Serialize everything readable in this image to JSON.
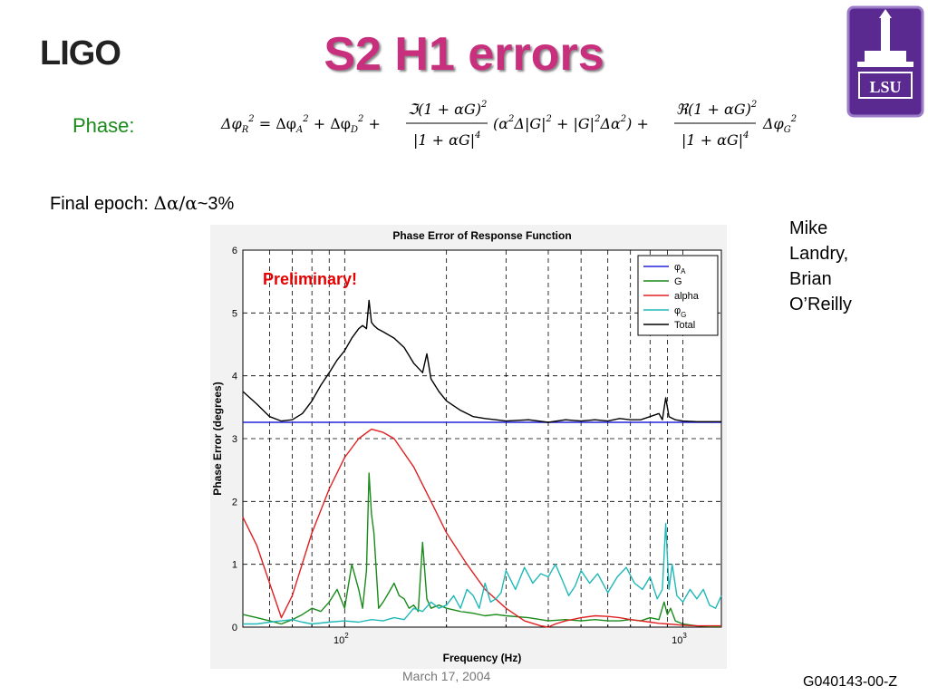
{
  "slide": {
    "logo_left": "LIGO",
    "title": "S2 H1 errors",
    "logo_right": "LSU",
    "phase_label": "Phase:",
    "epoch_prefix": "Final epoch: ",
    "epoch_symbol": "Δα/α",
    "epoch_value": "~3%",
    "authors": [
      "Mike",
      "Landry,",
      "Brian",
      "O’Reilly"
    ],
    "footer_date": "March 17, 2004",
    "footer_id": "G040143-00-Z"
  },
  "colors": {
    "title": "#c8307e",
    "phase_label": "#1a8a1a",
    "lsu_purple": "#5b2a91",
    "preliminary": "#e60000"
  },
  "chart_data": {
    "type": "line",
    "title": "Phase Error of Response Function",
    "xlabel": "Frequency (Hz)",
    "ylabel": "Phase Error (degrees)",
    "xscale": "log",
    "xlim": [
      50,
      1300
    ],
    "ylim": [
      0,
      6
    ],
    "x_ticks": [
      {
        "value": 100,
        "base": "10",
        "exp": "2"
      },
      {
        "value": 1000,
        "base": "10",
        "exp": "3"
      }
    ],
    "y_ticks": [
      0,
      1,
      2,
      3,
      4,
      5,
      6
    ],
    "grid": true,
    "legend_position": "top-right",
    "annotation": "Preliminary!",
    "series": [
      {
        "name": "φA",
        "legend_main": "φ",
        "legend_sub": "A",
        "color": "#2424d8",
        "x": [
          50,
          1300
        ],
        "y": [
          3.26,
          3.26
        ]
      },
      {
        "name": "G",
        "legend_main": "G",
        "legend_sub": "",
        "color": "#1a8a1a",
        "x": [
          50,
          55,
          60,
          65,
          70,
          75,
          80,
          85,
          90,
          95,
          100,
          105,
          110,
          113,
          116,
          118,
          120,
          122,
          124,
          126,
          130,
          135,
          140,
          145,
          150,
          155,
          160,
          165,
          170,
          175,
          180,
          190,
          200,
          220,
          240,
          260,
          280,
          300,
          350,
          400,
          450,
          500,
          550,
          600,
          650,
          700,
          750,
          800,
          850,
          880,
          900,
          920,
          950,
          1000,
          1100,
          1200,
          1300
        ],
        "y": [
          0.2,
          0.15,
          0.1,
          0.05,
          0.12,
          0.2,
          0.3,
          0.25,
          0.4,
          0.6,
          0.3,
          1.0,
          0.6,
          0.3,
          0.9,
          2.45,
          1.8,
          1.5,
          0.9,
          0.3,
          0.4,
          0.55,
          0.7,
          0.5,
          0.45,
          0.3,
          0.35,
          0.25,
          1.35,
          0.45,
          0.3,
          0.35,
          0.3,
          0.25,
          0.22,
          0.18,
          0.2,
          0.18,
          0.15,
          0.1,
          0.12,
          0.1,
          0.12,
          0.1,
          0.1,
          0.12,
          0.1,
          0.15,
          0.12,
          0.4,
          0.2,
          0.3,
          0.1,
          0.05,
          0.02,
          0.01,
          0.01
        ]
      },
      {
        "name": "alpha",
        "legend_main": "alpha",
        "legend_sub": "",
        "color": "#e02020",
        "x": [
          50,
          55,
          60,
          65,
          70,
          80,
          90,
          100,
          110,
          120,
          130,
          140,
          160,
          180,
          200,
          230,
          260,
          300,
          340,
          380,
          400,
          420,
          450,
          500,
          550,
          600,
          650,
          700,
          750,
          800,
          850,
          900,
          950,
          1000,
          1100,
          1200,
          1300
        ],
        "y": [
          1.75,
          1.3,
          0.7,
          0.15,
          0.5,
          1.5,
          2.2,
          2.7,
          3.0,
          3.15,
          3.1,
          3.0,
          2.55,
          2.0,
          1.5,
          1.0,
          0.6,
          0.3,
          0.1,
          0.02,
          0.0,
          0.05,
          0.1,
          0.15,
          0.18,
          0.17,
          0.15,
          0.12,
          0.1,
          0.08,
          0.06,
          0.05,
          0.04,
          0.03,
          0.02,
          0.02,
          0.02
        ]
      },
      {
        "name": "φG",
        "legend_main": "φ",
        "legend_sub": "G",
        "color": "#20b8b8",
        "x": [
          50,
          55,
          60,
          65,
          70,
          75,
          80,
          90,
          100,
          110,
          120,
          130,
          140,
          150,
          160,
          170,
          180,
          190,
          200,
          210,
          220,
          230,
          240,
          250,
          260,
          270,
          280,
          290,
          300,
          320,
          340,
          360,
          380,
          400,
          420,
          440,
          460,
          480,
          500,
          530,
          560,
          600,
          640,
          680,
          720,
          760,
          800,
          840,
          870,
          890,
          910,
          930,
          960,
          1000,
          1050,
          1100,
          1150,
          1200,
          1250,
          1300
        ],
        "y": [
          0.05,
          0.05,
          0.08,
          0.1,
          0.12,
          0.08,
          0.05,
          0.08,
          0.1,
          0.08,
          0.12,
          0.1,
          0.15,
          0.12,
          0.3,
          0.25,
          0.4,
          0.3,
          0.35,
          0.5,
          0.3,
          0.6,
          0.5,
          0.3,
          0.7,
          0.4,
          0.45,
          0.55,
          0.9,
          0.6,
          0.95,
          0.7,
          0.85,
          0.8,
          1.0,
          0.75,
          0.5,
          0.65,
          0.9,
          0.7,
          0.85,
          0.55,
          0.8,
          0.95,
          0.7,
          0.6,
          0.8,
          0.45,
          0.6,
          1.65,
          0.6,
          1.0,
          0.5,
          0.4,
          0.6,
          0.45,
          0.6,
          0.35,
          0.3,
          0.5
        ]
      },
      {
        "name": "Total",
        "legend_main": "Total",
        "legend_sub": "",
        "color": "#000000",
        "x": [
          50,
          55,
          60,
          65,
          70,
          75,
          80,
          85,
          90,
          95,
          100,
          105,
          110,
          113,
          116,
          118,
          120,
          122,
          125,
          130,
          140,
          150,
          160,
          170,
          175,
          180,
          190,
          200,
          220,
          240,
          260,
          280,
          300,
          350,
          400,
          450,
          500,
          550,
          600,
          650,
          700,
          750,
          800,
          850,
          870,
          890,
          910,
          950,
          1000,
          1100,
          1200,
          1300
        ],
        "y": [
          3.75,
          3.55,
          3.35,
          3.28,
          3.3,
          3.4,
          3.6,
          3.85,
          4.05,
          4.25,
          4.4,
          4.6,
          4.75,
          4.8,
          4.75,
          5.2,
          4.85,
          4.8,
          4.75,
          4.7,
          4.6,
          4.45,
          4.2,
          4.05,
          4.35,
          3.95,
          3.75,
          3.6,
          3.45,
          3.35,
          3.32,
          3.3,
          3.28,
          3.3,
          3.26,
          3.3,
          3.28,
          3.3,
          3.28,
          3.32,
          3.3,
          3.3,
          3.35,
          3.4,
          3.3,
          3.65,
          3.35,
          3.3,
          3.28,
          3.27,
          3.27,
          3.27
        ]
      }
    ]
  }
}
